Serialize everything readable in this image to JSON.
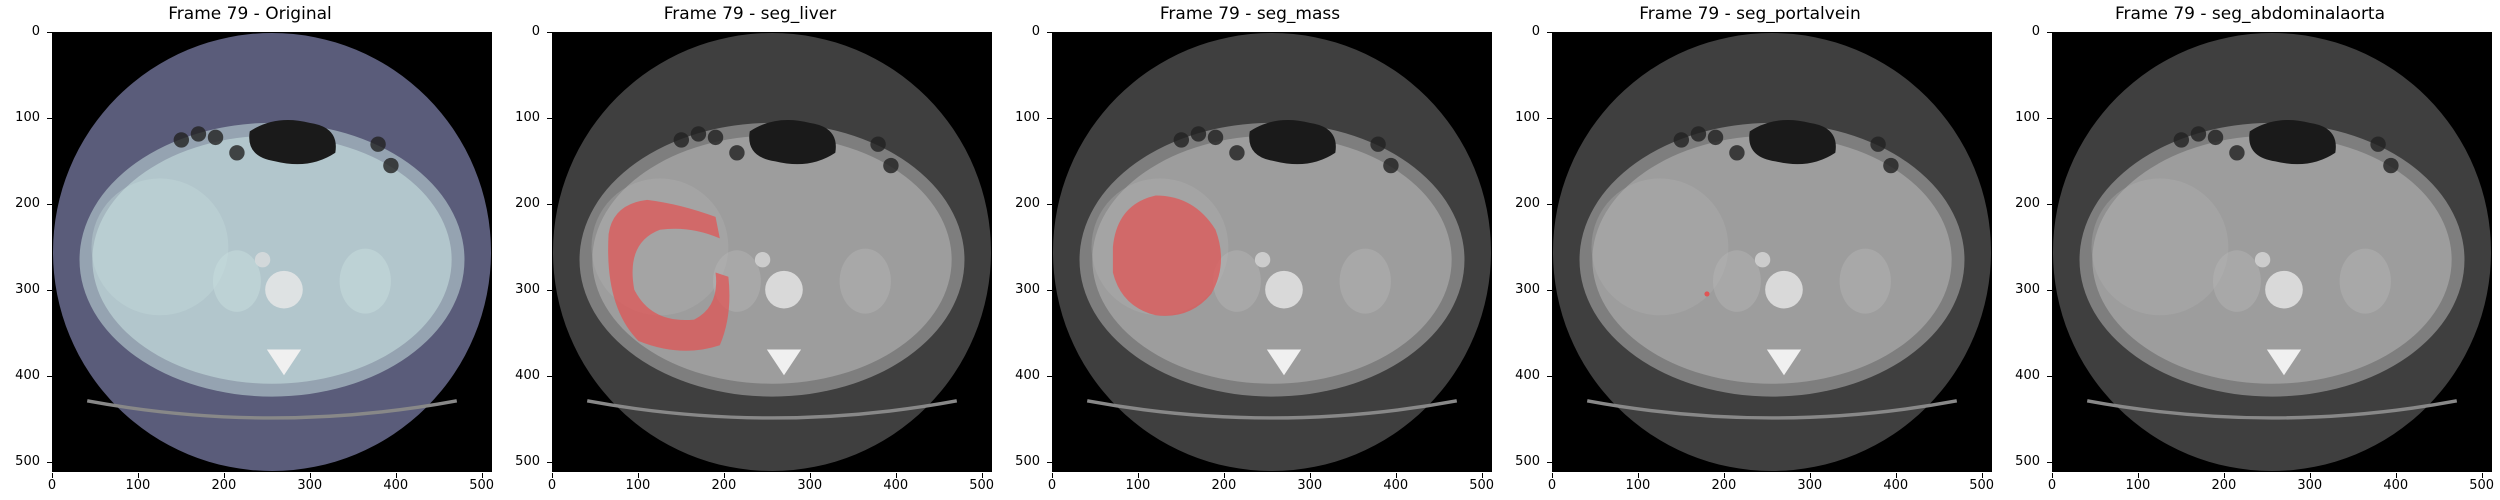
{
  "panels": [
    {
      "title": "Frame 79 - Original",
      "tint": "#c7dede",
      "bg": "#5a5c7a",
      "overlay": "none"
    },
    {
      "title": "Frame 79 - seg_liver",
      "tint": "#b3b3b3",
      "bg": "#3f3f3f",
      "overlay": "liver"
    },
    {
      "title": "Frame 79 - seg_mass",
      "tint": "#b3b3b3",
      "bg": "#3f3f3f",
      "overlay": "mass"
    },
    {
      "title": "Frame 79 - seg_portalvein",
      "tint": "#b3b3b3",
      "bg": "#3f3f3f",
      "overlay": "portalvein"
    },
    {
      "title": "Frame 79 - seg_abdominalaorta",
      "tint": "#b3b3b3",
      "bg": "#3f3f3f",
      "overlay": "none"
    }
  ],
  "y_ticks": [
    "0",
    "100",
    "200",
    "300",
    "400",
    "500"
  ],
  "x_ticks": [
    "0",
    "100",
    "200",
    "300",
    "400",
    "500"
  ],
  "overlay_color": "#e05555"
}
